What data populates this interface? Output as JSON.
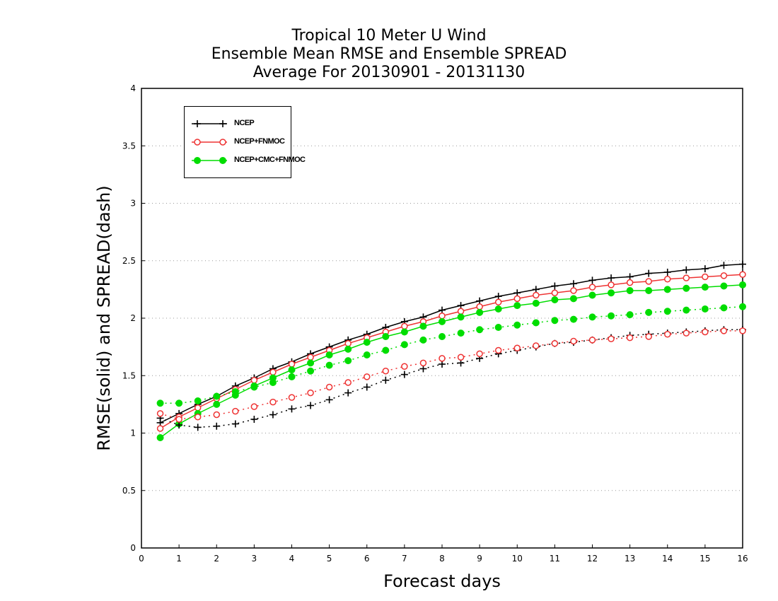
{
  "chart_data": {
    "type": "line",
    "title": [
      "Tropical 10 Meter U Wind",
      "Ensemble Mean RMSE and Ensemble SPREAD",
      "Average For 20130901 - 20131130"
    ],
    "xlabel": "Forecast days",
    "ylabel": "RMSE(solid) and SPREAD(dash)",
    "xlim": [
      0,
      16
    ],
    "ylim": [
      0,
      4
    ],
    "xticks": [
      0,
      1,
      2,
      3,
      4,
      5,
      6,
      7,
      8,
      9,
      10,
      11,
      12,
      13,
      14,
      15,
      16
    ],
    "yticks": [
      0,
      0.5,
      1,
      1.5,
      2,
      2.5,
      3,
      3.5,
      4
    ],
    "ytick_labels": [
      "0",
      "0.5",
      "1",
      "1.5",
      "2",
      "2.5",
      "3",
      "3.5",
      "4"
    ],
    "grid": "horizontal-dotted",
    "legend_position": "top-left",
    "x": [
      0.5,
      1,
      1.5,
      2,
      2.5,
      3,
      3.5,
      4,
      4.5,
      5,
      5.5,
      6,
      6.5,
      7,
      7.5,
      8,
      8.5,
      9,
      9.5,
      10,
      10.5,
      11,
      11.5,
      12,
      12.5,
      13,
      13.5,
      14,
      14.5,
      15,
      15.5,
      16
    ],
    "series": [
      {
        "name": "NCEP",
        "metric": "rmse",
        "style": "solid",
        "marker": "plus",
        "color": "#000000",
        "values": [
          1.09,
          1.17,
          1.25,
          1.32,
          1.41,
          1.48,
          1.56,
          1.62,
          1.69,
          1.75,
          1.81,
          1.86,
          1.92,
          1.97,
          2.01,
          2.07,
          2.11,
          2.15,
          2.19,
          2.22,
          2.25,
          2.28,
          2.3,
          2.33,
          2.35,
          2.36,
          2.39,
          2.4,
          2.42,
          2.43,
          2.46,
          2.47
        ]
      },
      {
        "name": "NCEP+FNMOC",
        "metric": "rmse",
        "style": "solid",
        "marker": "open-circle",
        "color": "#ee3333",
        "values": [
          1.04,
          1.14,
          1.22,
          1.3,
          1.38,
          1.46,
          1.53,
          1.6,
          1.66,
          1.72,
          1.78,
          1.83,
          1.88,
          1.93,
          1.97,
          2.02,
          2.06,
          2.1,
          2.14,
          2.17,
          2.2,
          2.22,
          2.24,
          2.27,
          2.29,
          2.31,
          2.32,
          2.34,
          2.35,
          2.36,
          2.37,
          2.38
        ]
      },
      {
        "name": "NCEP+CMC+FNMOC",
        "metric": "rmse",
        "style": "solid",
        "marker": "filled-circle",
        "color": "#00dd00",
        "values": [
          0.96,
          1.08,
          1.17,
          1.25,
          1.33,
          1.41,
          1.48,
          1.55,
          1.61,
          1.68,
          1.73,
          1.79,
          1.84,
          1.88,
          1.93,
          1.97,
          2.01,
          2.05,
          2.08,
          2.11,
          2.13,
          2.16,
          2.17,
          2.2,
          2.22,
          2.24,
          2.24,
          2.25,
          2.26,
          2.27,
          2.28,
          2.29
        ]
      },
      {
        "name": "NCEP",
        "metric": "spread",
        "style": "dash",
        "marker": "plus",
        "color": "#000000",
        "values": [
          1.13,
          1.07,
          1.05,
          1.06,
          1.08,
          1.12,
          1.16,
          1.21,
          1.24,
          1.29,
          1.35,
          1.4,
          1.46,
          1.51,
          1.56,
          1.6,
          1.61,
          1.65,
          1.69,
          1.72,
          1.75,
          1.78,
          1.79,
          1.81,
          1.83,
          1.85,
          1.86,
          1.87,
          1.88,
          1.89,
          1.9,
          1.9
        ]
      },
      {
        "name": "NCEP+FNMOC",
        "metric": "spread",
        "style": "dash",
        "marker": "open-circle",
        "color": "#ee3333",
        "values": [
          1.17,
          1.12,
          1.14,
          1.16,
          1.19,
          1.23,
          1.27,
          1.31,
          1.35,
          1.4,
          1.44,
          1.49,
          1.54,
          1.58,
          1.61,
          1.65,
          1.66,
          1.69,
          1.72,
          1.74,
          1.76,
          1.78,
          1.8,
          1.81,
          1.82,
          1.83,
          1.84,
          1.86,
          1.87,
          1.88,
          1.89,
          1.89
        ]
      },
      {
        "name": "NCEP+CMC+FNMOC",
        "metric": "spread",
        "style": "dash",
        "marker": "filled-circle",
        "color": "#00dd00",
        "values": [
          1.26,
          1.26,
          1.28,
          1.32,
          1.36,
          1.4,
          1.44,
          1.49,
          1.54,
          1.59,
          1.63,
          1.68,
          1.72,
          1.77,
          1.81,
          1.84,
          1.87,
          1.9,
          1.92,
          1.94,
          1.96,
          1.98,
          1.99,
          2.01,
          2.02,
          2.03,
          2.05,
          2.06,
          2.07,
          2.08,
          2.09,
          2.1
        ]
      }
    ]
  },
  "legend": [
    {
      "label": "NCEP",
      "marker": "plus",
      "color": "#000000"
    },
    {
      "label": "NCEP+FNMOC",
      "marker": "open-circle",
      "color": "#ee3333"
    },
    {
      "label": "NCEP+CMC+FNMOC",
      "marker": "filled-circle",
      "color": "#00dd00"
    }
  ]
}
